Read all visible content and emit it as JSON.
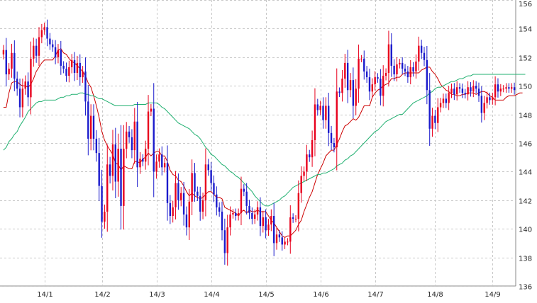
{
  "chart_data": {
    "type": "candlestick",
    "title": "",
    "xlabel": "",
    "ylabel": "",
    "ylim": [
      136,
      156
    ],
    "y_ticks": [
      136,
      138,
      140,
      142,
      144,
      146,
      148,
      150,
      152,
      154,
      156
    ],
    "x_ticks": [
      {
        "label": "14/1",
        "index": 15
      },
      {
        "label": "14/2",
        "index": 36
      },
      {
        "label": "14/3",
        "index": 56
      },
      {
        "label": "14/4",
        "index": 76
      },
      {
        "label": "14/5",
        "index": 96
      },
      {
        "label": "14/6",
        "index": 116
      },
      {
        "label": "14/7",
        "index": 136
      },
      {
        "label": "14/8",
        "index": 158
      },
      {
        "label": "14/9",
        "index": 179
      }
    ],
    "grid": true,
    "y_axis_side": "right",
    "series": [
      {
        "kind": "close",
        "values": [
          152.5,
          150.8,
          151.2,
          152.3,
          150.5,
          149.8,
          148.5,
          149.8,
          150.3,
          149.2,
          151.9,
          152.8,
          152.1,
          153.4,
          153.9,
          154.1,
          153.3,
          152.9,
          152.7,
          152.0,
          152.5,
          151.4,
          151.2,
          150.7,
          151.3,
          151.8,
          150.9,
          151.6,
          150.6,
          151.0,
          148.9,
          146.3,
          147.9,
          146.3,
          145.3,
          143.0,
          140.5,
          141.2,
          144.5,
          143.7,
          145.9,
          143.3,
          145.6,
          141.6,
          145.6,
          146.8,
          146.4,
          145.5,
          147.5,
          144.3,
          144.9,
          144.7,
          145.6,
          148.2,
          148.4,
          144.0,
          144.7,
          145.2,
          144.3,
          144.6,
          141.8,
          140.9,
          141.5,
          143.2,
          142.0,
          142.5,
          141.0,
          140.1,
          141.9,
          143.9,
          142.6,
          142.3,
          141.2,
          142.0,
          144.5,
          144.1,
          143.2,
          142.4,
          141.5,
          141.2,
          139.9,
          138.3,
          140.1,
          141.0,
          141.1,
          140.9,
          141.1,
          142.8,
          142.6,
          141.6,
          141.1,
          140.7,
          141.0,
          141.5,
          140.2,
          140.8,
          139.9,
          140.3,
          140.9,
          139.0,
          139.6,
          139.4,
          138.9,
          139.1,
          139.1,
          140.8,
          140.7,
          140.7,
          142.5,
          143.7,
          144.0,
          145.2,
          145.0,
          146.2,
          148.7,
          148.3,
          148.6,
          147.6,
          148.6,
          146.7,
          146.0,
          145.7,
          149.6,
          149.5,
          150.5,
          151.6,
          149.7,
          150.4,
          148.6,
          149.8,
          151.9,
          151.9,
          151.0,
          150.6,
          149.6,
          150.1,
          150.6,
          150.5,
          149.3,
          150.7,
          150.9,
          152.9,
          151.4,
          150.8,
          151.5,
          151.6,
          151.2,
          151.0,
          150.6,
          151.3,
          151.0,
          151.7,
          152.8,
          152.3,
          151.8,
          149.7,
          147.0,
          147.9,
          147.4,
          148.5,
          148.8,
          149.1,
          148.8,
          149.5,
          149.8,
          149.4,
          149.9,
          149.8,
          149.5,
          149.4,
          149.9,
          149.6,
          150.0,
          149.8,
          149.3,
          148.1,
          148.8,
          149.2,
          149.0,
          149.2,
          150.1,
          149.6,
          149.8,
          149.8,
          149.9,
          149.8,
          149.9,
          149.7
        ]
      },
      {
        "kind": "short-ma",
        "color": "#cc0000",
        "values": [
          148.5,
          148.5,
          149.5,
          150.2,
          150.3,
          150.3,
          150.1,
          150.0,
          150.0,
          149.9,
          150.1,
          150.5,
          151.0,
          151.3,
          151.6,
          151.8,
          151.8,
          151.8,
          151.8,
          152.1,
          152.5,
          152.6,
          152.3,
          152.2,
          151.9,
          151.7,
          151.6,
          151.4,
          151.2,
          151.0,
          150.7,
          150.2,
          149.9,
          149.3,
          148.6,
          147.8,
          146.8,
          146.2,
          145.8,
          145.5,
          145.2,
          144.6,
          144.5,
          144.1,
          144.4,
          144.3,
          144.2,
          144.2,
          144.7,
          144.7,
          144.6,
          144.9,
          145.0,
          145.3,
          145.1,
          145.3,
          145.4,
          145.4,
          145.1,
          145.1,
          144.7,
          144.1,
          143.8,
          143.7,
          143.4,
          143.3,
          143.0,
          142.6,
          142.3,
          142.5,
          142.3,
          142.2,
          142.1,
          142.2,
          142.4,
          142.6,
          142.6,
          142.4,
          142.2,
          142.2,
          142.1,
          141.5,
          141.4,
          141.3,
          141.2,
          141.1,
          140.9,
          141.2,
          141.3,
          141.1,
          141.3,
          141.2,
          141.2,
          141.3,
          141.2,
          141.2,
          141.2,
          140.9,
          140.6,
          140.4,
          140.1,
          139.8,
          139.5,
          139.4,
          139.5,
          139.5,
          139.7,
          139.9,
          140.3,
          140.6,
          141.2,
          141.7,
          142.2,
          142.6,
          143.2,
          143.8,
          144.2,
          144.6,
          145.1,
          145.3,
          145.5,
          145.5,
          145.9,
          146.3,
          146.8,
          147.2,
          147.3,
          147.5,
          147.7,
          147.6,
          147.8,
          148.2,
          148.6,
          148.6,
          148.6,
          149.2,
          149.5,
          149.7,
          149.8,
          150.0,
          150.1,
          150.2,
          150.5,
          150.5,
          150.6,
          150.6,
          150.8,
          150.9,
          150.9,
          150.9,
          150.9,
          150.9,
          150.9,
          151.1,
          151.2,
          151.3,
          151.3,
          151.0,
          150.8,
          150.5,
          150.1,
          149.9,
          149.7,
          149.6,
          149.4,
          149.4,
          149.3,
          149.3,
          149.4,
          149.4,
          149.5,
          149.5,
          149.5,
          149.4,
          149.5,
          149.6,
          149.6,
          149.5,
          149.3,
          149.2,
          149.0,
          149.0,
          149.0,
          149.0,
          149.2,
          149.3,
          149.3,
          149.3,
          149.4,
          149.5,
          149.5
        ]
      },
      {
        "kind": "long-ma",
        "color": "#20b070",
        "values": [
          145.5,
          145.7,
          146.1,
          146.3,
          146.6,
          146.8,
          147.2,
          147.5,
          147.8,
          148.2,
          148.4,
          148.6,
          148.8,
          148.9,
          148.9,
          149.0,
          149.0,
          149.0,
          149.0,
          149.0,
          149.1,
          149.2,
          149.2,
          149.3,
          149.3,
          149.4,
          149.4,
          149.4,
          149.5,
          149.5,
          149.4,
          149.4,
          149.3,
          149.3,
          149.2,
          149.1,
          149.1,
          149.0,
          148.9,
          148.8,
          148.7,
          148.6,
          148.6,
          148.6,
          148.6,
          148.6,
          148.6,
          148.6,
          148.7,
          148.7,
          148.7,
          148.7,
          148.7,
          148.8,
          148.8,
          148.8,
          148.8,
          148.7,
          148.5,
          148.4,
          148.2,
          148.0,
          147.8,
          147.6,
          147.4,
          147.3,
          147.2,
          147.1,
          147.0,
          146.8,
          146.6,
          146.5,
          146.3,
          146.0,
          145.7,
          145.5,
          145.2,
          145.1,
          144.9,
          144.7,
          144.5,
          144.4,
          144.2,
          144.0,
          143.9,
          143.7,
          143.6,
          143.4,
          143.2,
          143.0,
          142.8,
          142.6,
          142.3,
          142.1,
          141.9,
          141.7,
          141.6,
          141.6,
          141.7,
          141.8,
          141.9,
          142.0,
          142.2,
          142.3,
          142.5,
          142.7,
          142.9,
          143.0,
          143.1,
          143.2,
          143.3,
          143.4,
          143.5,
          143.6,
          143.7,
          143.8,
          143.8,
          143.9,
          143.9,
          144.0,
          144.1,
          144.2,
          144.4,
          144.5,
          144.6,
          144.8,
          144.9,
          145.1,
          145.2,
          145.4,
          145.6,
          145.8,
          146.0,
          146.2,
          146.4,
          146.6,
          146.8,
          146.9,
          147.1,
          147.3,
          147.5,
          147.6,
          147.7,
          147.8,
          147.9,
          148.0,
          148.0,
          148.2,
          148.4,
          148.6,
          148.8,
          148.9,
          149.0,
          149.1,
          149.2,
          149.3,
          149.5,
          149.6,
          149.8,
          149.9,
          149.9,
          150.0,
          150.1,
          150.2,
          150.3,
          150.3,
          150.4,
          150.5,
          150.5,
          150.6,
          150.7,
          150.7,
          150.8,
          150.8,
          150.8,
          150.8,
          150.8,
          150.8,
          150.8,
          150.8,
          150.8,
          150.8,
          150.8,
          150.8,
          150.8,
          150.8,
          150.8,
          150.8,
          150.8,
          150.8,
          150.8,
          150.8
        ]
      }
    ],
    "up_color": "#e8001c",
    "down_color": "#1a1acc",
    "grid_color": "#c8c8c8"
  }
}
